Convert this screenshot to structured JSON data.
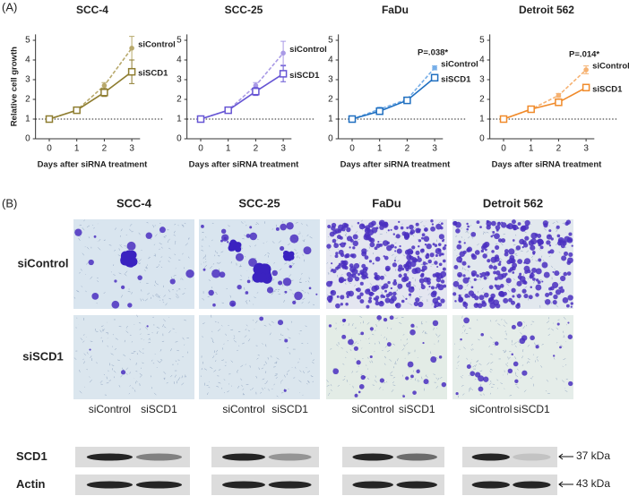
{
  "panels": {
    "a": "(A)",
    "b": "(B)"
  },
  "chart_data": [
    {
      "type": "line",
      "title": "SCC-4",
      "xlabel": "Days after siRNA treatment",
      "ylabel": "Relative cell growth",
      "x": [
        0,
        1,
        2,
        3
      ],
      "xlim": [
        -0.5,
        3.3
      ],
      "xticks": [
        0,
        1,
        2,
        3
      ],
      "ylim": [
        0,
        5.3
      ],
      "yticks": [
        0,
        1,
        2,
        3,
        4,
        5
      ],
      "hline": 1,
      "series": [
        {
          "name": "siControl",
          "color": "#b8a96c",
          "dashed": true,
          "values": [
            1,
            1.45,
            2.7,
            4.6
          ],
          "errors": [
            0,
            0.05,
            0.15,
            0.6
          ]
        },
        {
          "name": "siSCD1",
          "color": "#8e7d30",
          "dashed": false,
          "values": [
            1,
            1.45,
            2.35,
            3.4
          ],
          "errors": [
            0,
            0.05,
            0.2,
            0.6
          ]
        }
      ]
    },
    {
      "type": "line",
      "title": "SCC-25",
      "xlabel": "Days after siRNA treatment",
      "x": [
        0,
        1,
        2,
        3
      ],
      "xlim": [
        -0.5,
        3.3
      ],
      "xticks": [
        0,
        1,
        2,
        3
      ],
      "ylim": [
        0,
        5.3
      ],
      "yticks": [
        0,
        1,
        2,
        3,
        4,
        5
      ],
      "hline": 1,
      "series": [
        {
          "name": "siControl",
          "color": "#a99ae6",
          "dashed": true,
          "values": [
            1,
            1.45,
            2.7,
            4.35
          ],
          "errors": [
            0,
            0.05,
            0.15,
            0.6
          ]
        },
        {
          "name": "siSCD1",
          "color": "#6655d4",
          "dashed": false,
          "values": [
            1,
            1.45,
            2.4,
            3.3
          ],
          "errors": [
            0,
            0.05,
            0.2,
            0.4
          ]
        }
      ]
    },
    {
      "type": "line",
      "title": "FaDu",
      "xlabel": "Days after siRNA treatment",
      "x": [
        0,
        1,
        2,
        3
      ],
      "xlim": [
        -0.5,
        3.3
      ],
      "xticks": [
        0,
        1,
        2,
        3
      ],
      "ylim": [
        0,
        5.3
      ],
      "yticks": [
        0,
        1,
        2,
        3,
        4,
        5
      ],
      "hline": 1,
      "annotation": "P=.038*",
      "series": [
        {
          "name": "siControl",
          "color": "#76aee8",
          "dashed": true,
          "values": [
            1,
            1.5,
            2.0,
            3.6
          ],
          "errors": [
            0,
            0.1,
            0.1,
            0.1
          ]
        },
        {
          "name": "siSCD1",
          "color": "#1f6fc0",
          "dashed": false,
          "values": [
            1,
            1.4,
            1.95,
            3.1
          ],
          "errors": [
            0,
            0.15,
            0.1,
            0.15
          ]
        }
      ]
    },
    {
      "type": "line",
      "title": "Detroit 562",
      "xlabel": "Days after siRNA treatment",
      "x": [
        0,
        1,
        2,
        3
      ],
      "xlim": [
        -0.5,
        3.3
      ],
      "xticks": [
        0,
        1,
        2,
        3
      ],
      "ylim": [
        0,
        5.3
      ],
      "yticks": [
        0,
        1,
        2,
        3,
        4,
        5
      ],
      "hline": 1,
      "annotation": "P=.014*",
      "series": [
        {
          "name": "siControl",
          "color": "#f6b272",
          "dashed": true,
          "values": [
            1,
            1.5,
            2.2,
            3.5
          ],
          "errors": [
            0,
            0.05,
            0.1,
            0.2
          ]
        },
        {
          "name": "siSCD1",
          "color": "#f08a2a",
          "dashed": false,
          "values": [
            1,
            1.5,
            1.85,
            2.6
          ],
          "errors": [
            0,
            0.1,
            0.1,
            0.15
          ]
        }
      ]
    }
  ],
  "invasion": {
    "columns": [
      "SCC-4",
      "SCC-25",
      "FaDu",
      "Detroit 562"
    ],
    "rows": [
      "siControl",
      "siSCD1"
    ]
  },
  "western": {
    "lanes": [
      [
        "siControl",
        "siSCD1"
      ],
      [
        "siControl",
        "siSCD1"
      ],
      [
        "siControl",
        "siSCD1"
      ],
      [
        "siControl",
        "siSCD1"
      ]
    ],
    "proteins": [
      "SCD1",
      "Actin"
    ],
    "markers": [
      "37 kDa",
      "43 kDa"
    ]
  }
}
